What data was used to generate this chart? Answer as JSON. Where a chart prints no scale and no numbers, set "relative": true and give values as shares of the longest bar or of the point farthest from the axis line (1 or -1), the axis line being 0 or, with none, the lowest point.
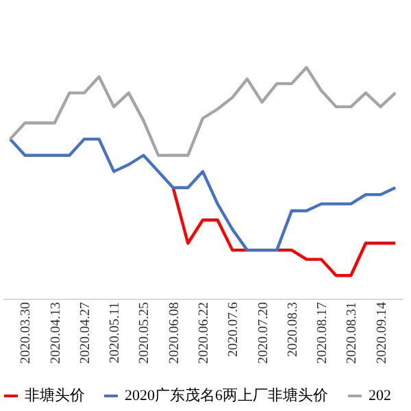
{
  "chart_data": {
    "type": "line",
    "relative": true,
    "categories": [
      null,
      "2020.03.30",
      null,
      "2020.04.13",
      null,
      "2020.04.27",
      null,
      "2020.05.11",
      null,
      "2020.05.25",
      null,
      "2020.06.08",
      null,
      "2020.06.22",
      null,
      "2020.07.6",
      null,
      "2020.07.20",
      null,
      "2020.08.3",
      null,
      "2020.08.17",
      null,
      "2020.08.31",
      null,
      "2020.09.14",
      null
    ],
    "series": [
      {
        "name": "非塘头价",
        "color": "#ff0000",
        "values": [
          null,
          null,
          null,
          null,
          null,
          null,
          null,
          null,
          null,
          null,
          null,
          0.48,
          0.24,
          0.34,
          0.34,
          0.21,
          0.21,
          0.21,
          0.21,
          0.21,
          0.17,
          0.17,
          0.1,
          0.1,
          0.24,
          0.24,
          0.24
        ]
      },
      {
        "name": "2020广东茂名6两上厂非塘头价",
        "color": "#4472c4",
        "values": [
          0.69,
          0.62,
          0.62,
          0.62,
          0.62,
          0.69,
          0.69,
          0.55,
          0.58,
          0.62,
          0.55,
          0.48,
          0.48,
          0.55,
          0.41,
          0.3,
          0.21,
          0.21,
          0.21,
          0.38,
          0.38,
          0.41,
          0.41,
          0.41,
          0.45,
          0.45,
          0.48
        ]
      },
      {
        "name": "202",
        "color": "#a5a5a5",
        "values": [
          0.69,
          0.76,
          0.76,
          0.76,
          0.89,
          0.89,
          0.96,
          0.83,
          0.89,
          0.77,
          0.62,
          0.62,
          0.62,
          0.78,
          0.82,
          0.87,
          0.95,
          0.85,
          0.93,
          0.93,
          1.0,
          0.9,
          0.83,
          0.83,
          0.89,
          0.83,
          0.89
        ]
      }
    ],
    "legend": "bottom",
    "grid": false,
    "marker": "none",
    "line_style": "solid"
  }
}
